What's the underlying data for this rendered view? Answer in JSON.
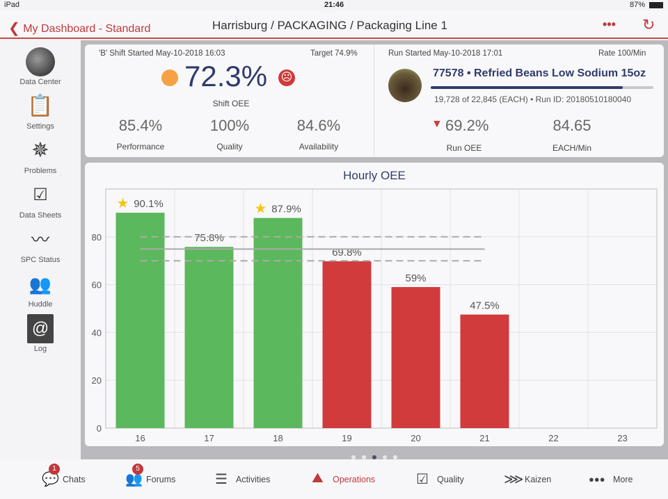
{
  "status_bar": {
    "device": "iPad",
    "time": "21:46",
    "battery": "87%"
  },
  "nav": {
    "back_label": "My Dashboard - Standard",
    "title": "Harrisburg / PACKAGING / Packaging Line 1",
    "more": "•••",
    "refresh_icon": "refresh-icon"
  },
  "sidebar": {
    "items": [
      {
        "label": "Data Center",
        "icon": "photo-avatar"
      },
      {
        "label": "Settings",
        "icon": "clipboard-icon"
      },
      {
        "label": "Problems",
        "icon": "burst-icon"
      },
      {
        "label": "Data Sheets",
        "icon": "abc-checklist-icon"
      },
      {
        "label": "SPC Status",
        "icon": "spc-chart-icon"
      },
      {
        "label": "Huddle",
        "icon": "people-icon"
      },
      {
        "label": "Log",
        "icon": "factory-at-icon"
      }
    ]
  },
  "shift": {
    "started": "'B' Shift Started May-10-2018 16:03",
    "target": "Target 74.9%",
    "oee": "72.3%",
    "oee_label": "Shift OEE",
    "status_color": "#f4a244",
    "face_color": "#d03a3a",
    "metrics": [
      {
        "value": "85.4%",
        "label": "Performance"
      },
      {
        "value": "100%",
        "label": "Quality"
      },
      {
        "value": "84.6%",
        "label": "Availability"
      }
    ]
  },
  "run": {
    "started": "Run Started May-10-2018 17:01",
    "rate": "Rate 100/Min",
    "product": "77578 • Refried Beans Low Sodium 15oz",
    "progress": 0.864,
    "detail": "19,728 of 22,845 (EACH) • Run ID: 20180510180040",
    "run_oee": "69.2%",
    "run_oee_label": "Run OEE",
    "each_min": "84.65",
    "each_min_label": "EACH/Min"
  },
  "chart_data": {
    "type": "bar",
    "title": "Hourly OEE",
    "categories": [
      "16",
      "17",
      "18",
      "19",
      "20",
      "21",
      "22",
      "23"
    ],
    "values": [
      90.1,
      75.8,
      87.9,
      69.8,
      59,
      47.5,
      null,
      null
    ],
    "data_labels": [
      "90.1%",
      "75.8%",
      "87.9%",
      "69.8%",
      "59%",
      "47.5%",
      "",
      ""
    ],
    "stars": [
      true,
      false,
      true,
      false,
      false,
      false,
      false,
      false
    ],
    "colors": {
      "above": "#5cb85c",
      "below": "#d13b3b"
    },
    "target": 74.9,
    "target_band": [
      70,
      80
    ],
    "ylim": [
      0,
      100
    ],
    "yticks": [
      0,
      20,
      40,
      60,
      80
    ],
    "grid": true
  },
  "pager": {
    "pages": 5,
    "current": 3
  },
  "tabbar": {
    "items": [
      {
        "label": "Chats",
        "badge": "1",
        "icon": "chat-icon"
      },
      {
        "label": "Forums",
        "badge": "5",
        "icon": "forum-icon"
      },
      {
        "label": "Activities",
        "icon": "checklist-icon"
      },
      {
        "label": "Operations",
        "icon": "factory-icon",
        "active": true
      },
      {
        "label": "Quality",
        "icon": "quality-icon"
      },
      {
        "label": "Kaizen",
        "icon": "fishbone-icon"
      },
      {
        "label": "More",
        "icon": "more-icon"
      }
    ]
  }
}
